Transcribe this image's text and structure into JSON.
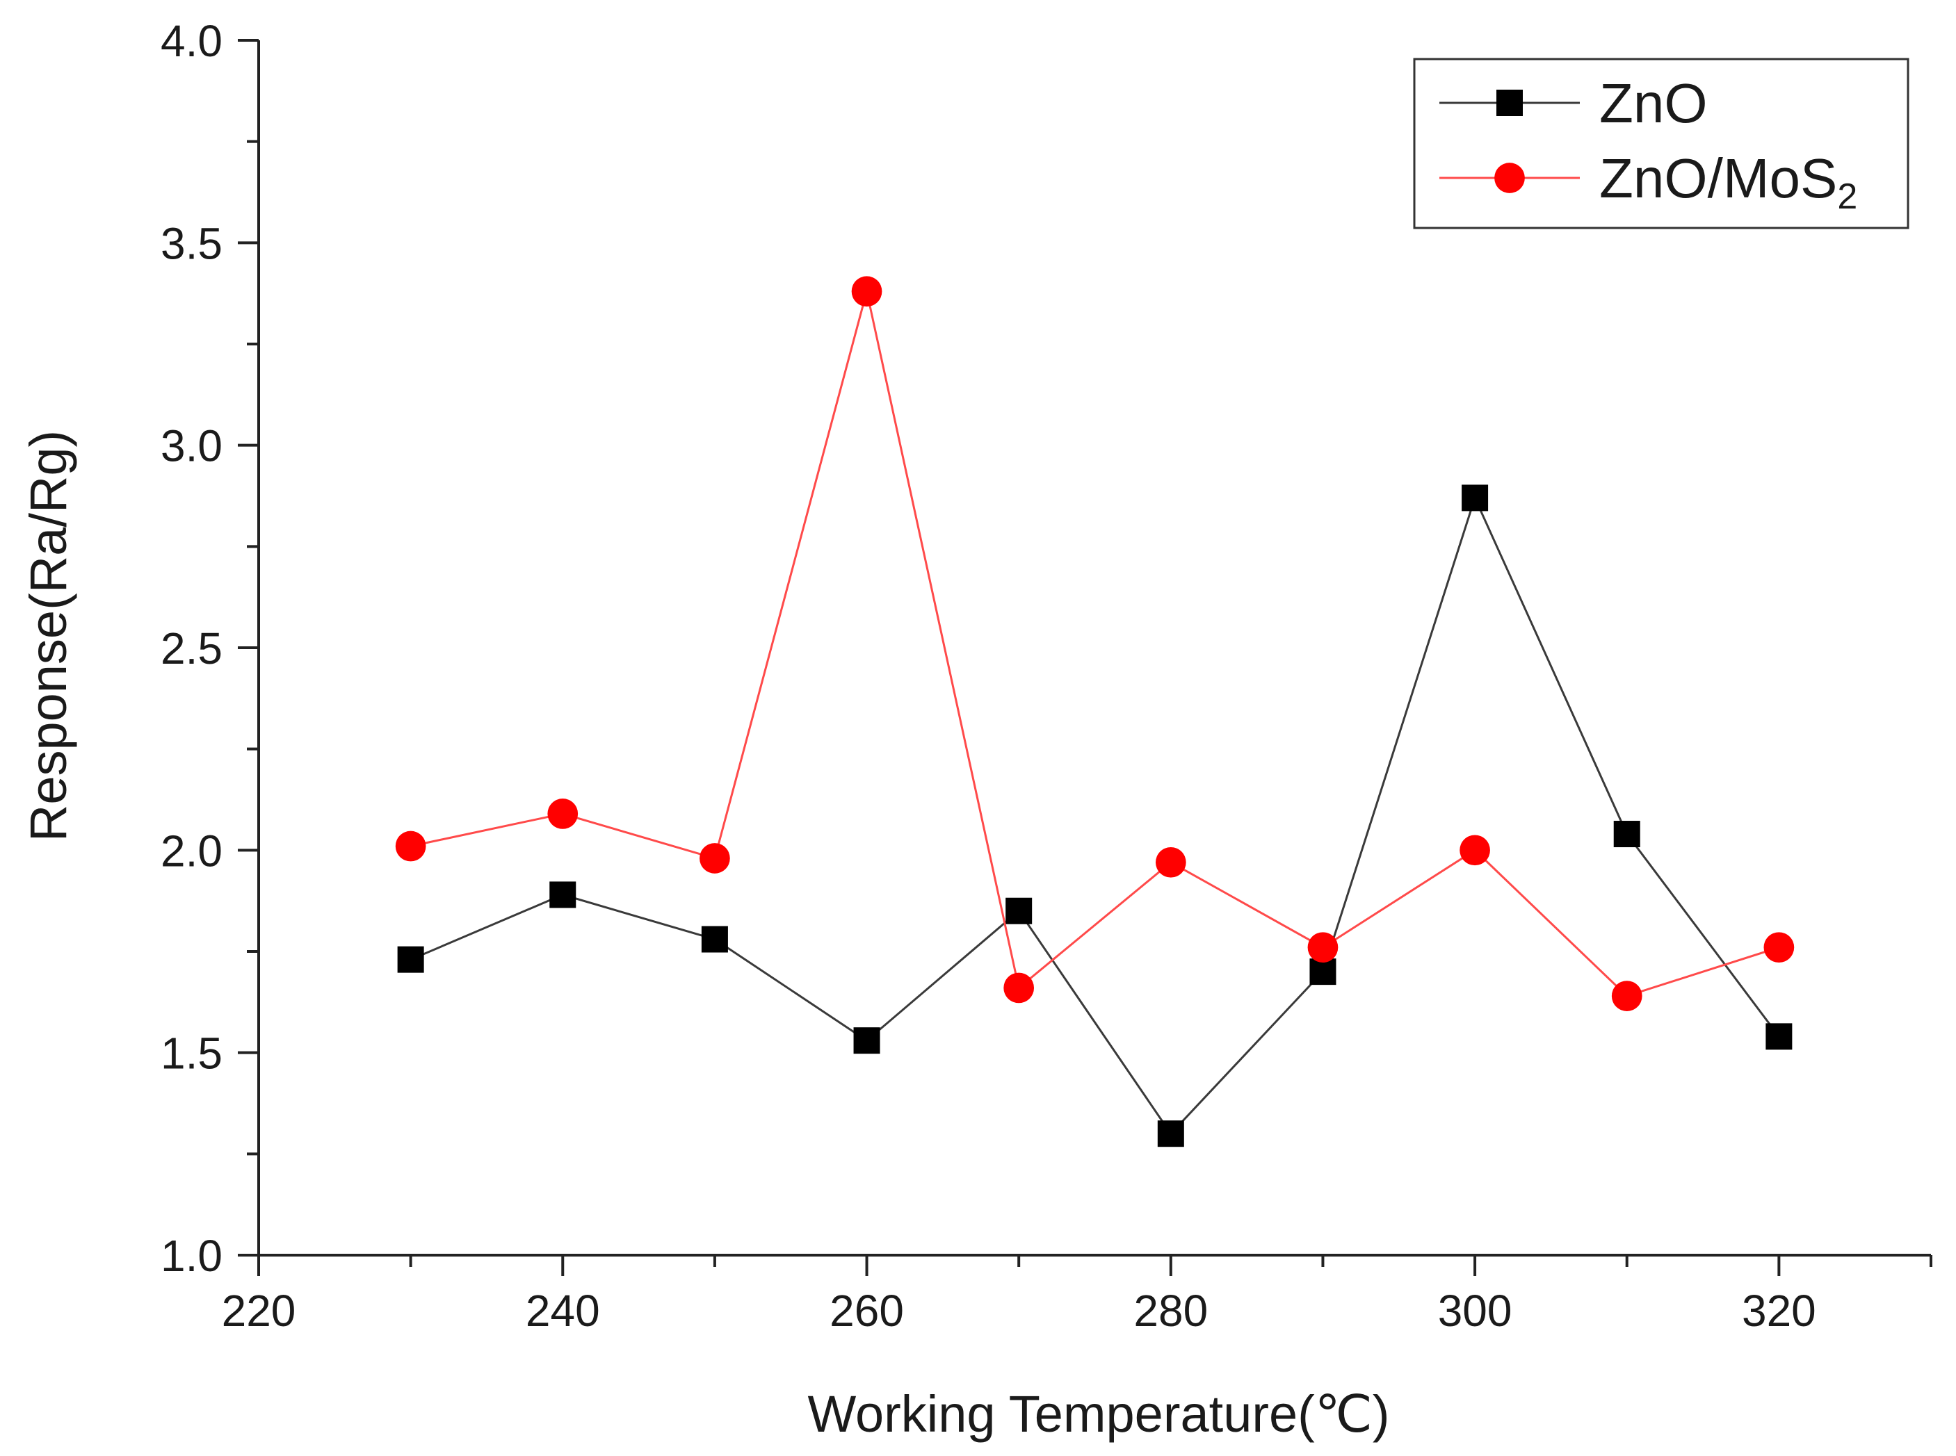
{
  "chart_data": {
    "type": "line",
    "title": "",
    "xlabel": "Working Temperature(℃)",
    "ylabel": "Response(Ra/Rg)",
    "xlim": [
      220,
      330
    ],
    "ylim": [
      1.0,
      4.0
    ],
    "x_ticks": [
      220,
      240,
      260,
      280,
      300,
      320
    ],
    "x_tick_labels": [
      "220",
      "240",
      "260",
      "280",
      "300",
      "320"
    ],
    "y_ticks": [
      1.0,
      1.5,
      2.0,
      2.5,
      3.0,
      3.5,
      4.0
    ],
    "y_tick_labels": [
      "1.0",
      "1.5",
      "2.0",
      "2.5",
      "3.0",
      "3.5",
      "4.0"
    ],
    "grid": false,
    "legend_position": "top-right",
    "x": [
      230,
      240,
      250,
      260,
      270,
      280,
      290,
      300,
      310,
      320
    ],
    "series": [
      {
        "name": "ZnO",
        "label_main": "ZnO",
        "label_sub": "",
        "marker": "square",
        "color": "#000000",
        "line_color": "#3a3a3a",
        "values": [
          1.73,
          1.89,
          1.78,
          1.53,
          1.85,
          1.3,
          1.7,
          2.87,
          2.04,
          1.54
        ]
      },
      {
        "name": "ZnO/MoS2",
        "label_main": "ZnO/MoS",
        "label_sub": "2",
        "marker": "circle",
        "color": "#ff0000",
        "line_color": "#ff4a4a",
        "values": [
          2.01,
          2.09,
          1.98,
          3.38,
          1.66,
          1.97,
          1.76,
          2.0,
          1.64,
          1.76
        ]
      }
    ]
  }
}
